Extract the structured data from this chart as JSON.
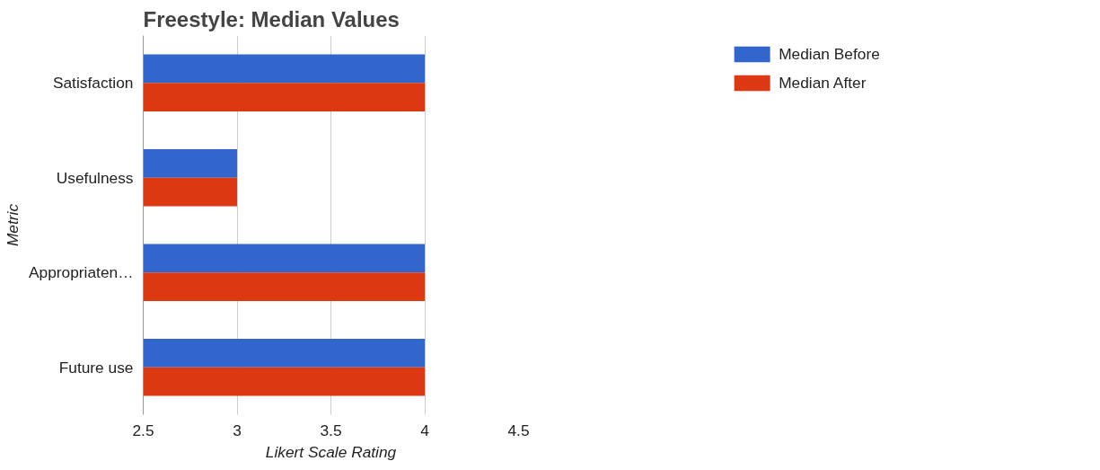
{
  "chart_data": {
    "type": "bar",
    "orientation": "horizontal",
    "title": "Freestyle: Median Values",
    "xlabel": "Likert Scale Rating",
    "ylabel": "Metric",
    "categories": [
      "Satisfaction",
      "Usefulness",
      "Appropriaten…",
      "Future use"
    ],
    "series": [
      {
        "name": "Median Before",
        "color": "#3366cc",
        "values": [
          4,
          3,
          4,
          4
        ]
      },
      {
        "name": "Median After",
        "color": "#dc3912",
        "values": [
          4,
          3,
          4,
          4
        ]
      }
    ],
    "xlim": [
      2.5,
      4.5
    ],
    "xticks": [
      2.5,
      3,
      3.5,
      4,
      4.5
    ],
    "grid": "x",
    "legend": "top right"
  }
}
